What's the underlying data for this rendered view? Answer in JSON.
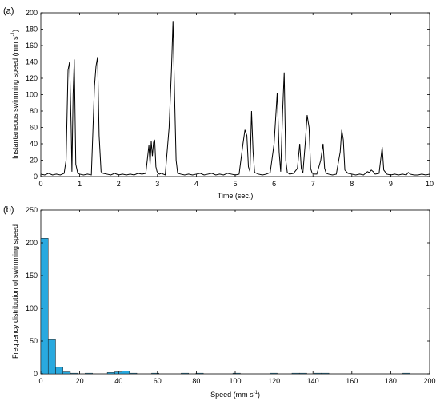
{
  "colors": {
    "line": "#000000",
    "bar_fill": "#29a9df",
    "bar_edge": "#1a1a1a",
    "axis": "#000000"
  },
  "chart_data": [
    {
      "panel_label": "(a)",
      "type": "line",
      "xlabel": "Time (sec.)",
      "ylabel": "Instantaneous swimming speed (mm s",
      "ylabel_sup": "-1",
      "ylabel_end": ")",
      "xlim": [
        0,
        10
      ],
      "ylim": [
        0,
        200
      ],
      "xticks": [
        0,
        1,
        2,
        3,
        4,
        5,
        6,
        7,
        8,
        9,
        10
      ],
      "yticks": [
        0,
        20,
        40,
        60,
        80,
        100,
        120,
        140,
        160,
        180,
        200
      ],
      "grid": false,
      "x": [
        0,
        0.1,
        0.2,
        0.3,
        0.4,
        0.5,
        0.6,
        0.65,
        0.7,
        0.74,
        0.78,
        0.8,
        0.83,
        0.86,
        0.9,
        0.95,
        1.0,
        1.1,
        1.2,
        1.3,
        1.38,
        1.42,
        1.46,
        1.5,
        1.55,
        1.6,
        1.7,
        1.8,
        1.9,
        2.0,
        2.1,
        2.2,
        2.3,
        2.4,
        2.5,
        2.6,
        2.7,
        2.78,
        2.81,
        2.84,
        2.87,
        2.9,
        2.93,
        2.96,
        2.99,
        3.02,
        3.05,
        3.1,
        3.2,
        3.3,
        3.36,
        3.4,
        3.44,
        3.48,
        3.52,
        3.6,
        3.7,
        3.8,
        3.9,
        4.0,
        4.1,
        4.2,
        4.3,
        4.4,
        4.5,
        4.6,
        4.7,
        4.8,
        4.9,
        5.0,
        5.1,
        5.2,
        5.25,
        5.3,
        5.34,
        5.38,
        5.42,
        5.46,
        5.5,
        5.55,
        5.6,
        5.7,
        5.8,
        5.9,
        6.0,
        6.08,
        6.13,
        6.17,
        6.22,
        6.26,
        6.3,
        6.34,
        6.4,
        6.5,
        6.6,
        6.66,
        6.7,
        6.74,
        6.8,
        6.85,
        6.9,
        6.94,
        6.98,
        7.05,
        7.1,
        7.2,
        7.26,
        7.3,
        7.34,
        7.4,
        7.5,
        7.6,
        7.7,
        7.74,
        7.78,
        7.82,
        7.9,
        8.0,
        8.1,
        8.2,
        8.3,
        8.4,
        8.45,
        8.5,
        8.55,
        8.6,
        8.7,
        8.74,
        8.78,
        8.82,
        8.9,
        9.0,
        9.1,
        9.2,
        9.3,
        9.4,
        9.45,
        9.5,
        9.6,
        9.7,
        9.8,
        9.9,
        10.0
      ],
      "values": [
        3,
        2,
        4,
        2,
        3,
        2,
        4,
        20,
        130,
        140,
        60,
        6,
        100,
        143,
        15,
        4,
        3,
        2,
        3,
        2,
        110,
        135,
        146,
        50,
        6,
        4,
        3,
        2,
        4,
        2,
        3,
        2,
        3,
        2,
        4,
        3,
        4,
        38,
        15,
        43,
        25,
        42,
        44,
        12,
        6,
        4,
        3,
        4,
        2,
        60,
        130,
        190,
        100,
        20,
        4,
        3,
        2,
        3,
        2,
        3,
        4,
        2,
        3,
        4,
        2,
        3,
        2,
        4,
        3,
        2,
        3,
        40,
        57,
        50,
        12,
        6,
        80,
        30,
        5,
        4,
        3,
        2,
        3,
        5,
        40,
        102,
        30,
        6,
        80,
        127,
        20,
        5,
        3,
        4,
        10,
        40,
        10,
        4,
        40,
        75,
        60,
        10,
        4,
        3,
        3,
        20,
        40,
        10,
        4,
        3,
        2,
        3,
        30,
        57,
        45,
        8,
        4,
        3,
        2,
        3,
        2,
        6,
        5,
        8,
        6,
        3,
        4,
        20,
        36,
        8,
        3,
        2,
        3,
        2,
        3,
        2,
        5,
        3,
        2,
        2,
        3,
        2,
        3
      ]
    },
    {
      "panel_label": "(b)",
      "type": "bar",
      "xlabel": "Speed (mm s",
      "xlabel_sup": "-1",
      "xlabel_end": ")",
      "ylabel": "Frequency distribution of swimming speed",
      "xlim": [
        0,
        200
      ],
      "ylim": [
        0,
        250
      ],
      "xticks": [
        0,
        20,
        40,
        60,
        80,
        100,
        120,
        140,
        160,
        180,
        200
      ],
      "yticks": [
        0,
        50,
        100,
        150,
        200,
        250
      ],
      "grid": false,
      "bin_width": 3.8,
      "bin_starts": [
        0,
        3.8,
        7.6,
        11.4,
        15.2,
        19,
        22.8,
        26.6,
        30.4,
        34.2,
        38,
        41.8,
        45.6,
        49.4,
        53.2,
        57,
        60.8,
        72.2,
        76,
        79.8,
        83.6,
        98.8,
        102.6,
        117.8,
        121.6,
        125.4,
        129.2,
        133,
        136.8,
        140.6,
        144.4,
        186.2
      ],
      "values": [
        207,
        52,
        10,
        3,
        1,
        0,
        1,
        0,
        0,
        2,
        3,
        4,
        1,
        0,
        0,
        1,
        0,
        1,
        0,
        1,
        0,
        1,
        0,
        1,
        0,
        0,
        1,
        1,
        0,
        1,
        1,
        1
      ]
    }
  ]
}
